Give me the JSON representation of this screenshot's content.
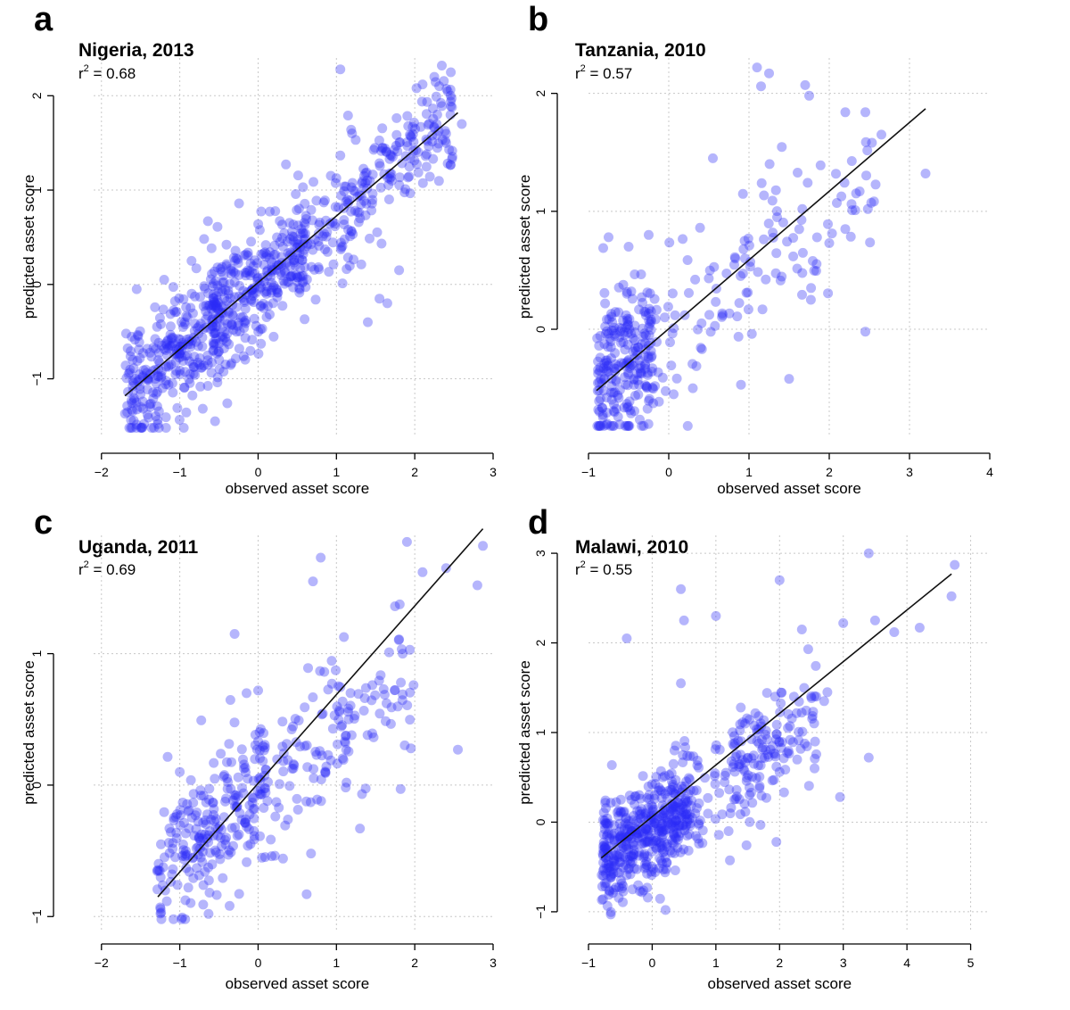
{
  "figure": {
    "xlabel": "observed asset score",
    "ylabel": "predicted asset score"
  },
  "colors": {
    "points": "#2b2bf5",
    "fit_line": "#111111",
    "grid": "#c8c8c8"
  },
  "chart_data": [
    {
      "id": "a",
      "type": "scatter",
      "letter": "a",
      "title": "Nigeria, 2013",
      "r2_value": "0.68",
      "xlabel": "observed asset score",
      "ylabel": "predicted asset score",
      "xlim": [
        -2.1,
        3.0
      ],
      "ylim": [
        -1.6,
        2.4
      ],
      "x_ticks": [
        -2,
        -1,
        0,
        1,
        2,
        3
      ],
      "y_ticks": [
        -1,
        0,
        1,
        2
      ],
      "grid": true,
      "fit": [
        [
          -1.7,
          -1.18
        ],
        [
          2.55,
          1.82
        ]
      ],
      "point_cloud": {
        "n": 820,
        "seed": 11,
        "slope": 0.71,
        "intercept": 0.02,
        "noise": 0.32,
        "x_groups": [
          [
            -1.7,
            -0.5,
            0.35
          ],
          [
            -0.6,
            0.6,
            0.35
          ],
          [
            0.5,
            2.5,
            0.3
          ]
        ]
      },
      "points": [
        [
          -1.6,
          -0.8
        ],
        [
          -1.55,
          -0.05
        ],
        [
          -1.3,
          -1.05
        ],
        [
          -1.2,
          0.05
        ],
        [
          -0.85,
          0.25
        ],
        [
          -0.55,
          -1.45
        ],
        [
          1.05,
          2.28
        ],
        [
          2.1,
          2.12
        ],
        [
          2.25,
          2.2
        ],
        [
          2.4,
          1.5
        ],
        [
          2.6,
          1.7
        ],
        [
          1.8,
          0.15
        ],
        [
          1.65,
          -0.2
        ],
        [
          1.4,
          -0.4
        ],
        [
          1.55,
          -0.15
        ]
      ]
    },
    {
      "id": "b",
      "type": "scatter",
      "letter": "b",
      "title": "Tanzania, 2010",
      "r2_value": "0.57",
      "xlabel": "observed asset score",
      "ylabel": "predicted asset score",
      "xlim": [
        -1.0,
        4.0
      ],
      "ylim": [
        -0.9,
        2.3
      ],
      "x_ticks": [
        -1,
        0,
        1,
        2,
        3,
        4
      ],
      "y_ticks": [
        0,
        1,
        2
      ],
      "grid": true,
      "fit": [
        [
          -0.9,
          -0.52
        ],
        [
          3.2,
          1.87
        ]
      ],
      "point_cloud": {
        "n": 360,
        "seed": 23,
        "slope": 0.5,
        "intercept": -0.05,
        "noise": 0.35,
        "x_groups": [
          [
            -0.9,
            -0.2,
            0.62
          ],
          [
            -0.2,
            1.0,
            0.2
          ],
          [
            1.0,
            2.6,
            0.18
          ]
        ]
      },
      "points": [
        [
          -0.85,
          -0.82
        ],
        [
          -0.75,
          0.78
        ],
        [
          -0.5,
          0.7
        ],
        [
          -0.25,
          0.8
        ],
        [
          0.55,
          1.45
        ],
        [
          1.1,
          2.22
        ],
        [
          1.15,
          2.06
        ],
        [
          1.25,
          2.17
        ],
        [
          1.7,
          2.07
        ],
        [
          1.75,
          1.98
        ],
        [
          2.2,
          1.84
        ],
        [
          2.45,
          1.84
        ],
        [
          2.65,
          1.65
        ],
        [
          3.2,
          1.32
        ],
        [
          2.45,
          -0.02
        ],
        [
          1.5,
          -0.42
        ],
        [
          0.9,
          -0.47
        ],
        [
          0.3,
          -0.5
        ],
        [
          2.2,
          0.85
        ],
        [
          2.0,
          0.73
        ],
        [
          0.95,
          0.6
        ],
        [
          1.35,
          0.95
        ]
      ]
    },
    {
      "id": "c",
      "type": "scatter",
      "letter": "c",
      "title": "Uganda, 2011",
      "r2_value": "0.69",
      "xlabel": "observed asset score",
      "ylabel": "predicted asset score",
      "xlim": [
        -2.1,
        3.0
      ],
      "ylim": [
        -1.1,
        1.9
      ],
      "x_ticks": [
        -2,
        -1,
        0,
        1,
        2,
        3
      ],
      "y_ticks": [
        -1,
        0,
        1
      ],
      "grid": true,
      "fit": [
        [
          -1.28,
          -0.85
        ],
        [
          2.87,
          1.95
        ]
      ],
      "point_cloud": {
        "n": 380,
        "seed": 37,
        "slope": 0.45,
        "intercept": -0.05,
        "noise": 0.28,
        "x_groups": [
          [
            -1.3,
            0.1,
            0.6
          ],
          [
            0.0,
            1.2,
            0.22
          ],
          [
            1.0,
            2.0,
            0.18
          ]
        ]
      },
      "points": [
        [
          -1.25,
          -0.93
        ],
        [
          -1.0,
          0.1
        ],
        [
          -0.3,
          1.15
        ],
        [
          0.0,
          0.72
        ],
        [
          0.62,
          -0.83
        ],
        [
          0.7,
          1.55
        ],
        [
          0.8,
          1.73
        ],
        [
          1.9,
          1.85
        ],
        [
          2.1,
          1.62
        ],
        [
          2.4,
          1.65
        ],
        [
          2.8,
          1.52
        ],
        [
          2.87,
          1.82
        ],
        [
          1.95,
          0.28
        ],
        [
          2.55,
          0.27
        ],
        [
          1.82,
          -0.03
        ],
        [
          1.3,
          -0.33
        ]
      ]
    },
    {
      "id": "d",
      "type": "scatter",
      "letter": "d",
      "title": "Malawi, 2010",
      "r2_value": "0.55",
      "xlabel": "observed asset score",
      "ylabel": "predicted asset score",
      "xlim": [
        -1.0,
        5.3
      ],
      "ylim": [
        -1.2,
        3.2
      ],
      "x_ticks": [
        -1,
        0,
        1,
        2,
        3,
        4,
        5
      ],
      "y_ticks": [
        -1,
        0,
        1,
        2,
        3
      ],
      "grid": true,
      "fit": [
        [
          -0.8,
          -0.4
        ],
        [
          4.7,
          2.77
        ]
      ],
      "point_cloud": {
        "n": 640,
        "seed": 53,
        "slope": 0.45,
        "intercept": -0.05,
        "noise": 0.3,
        "x_groups": [
          [
            -0.8,
            0.6,
            0.7
          ],
          [
            0.3,
            2.6,
            0.2
          ],
          [
            1.2,
            2.2,
            0.1
          ]
        ]
      },
      "points": [
        [
          -0.65,
          -1.03
        ],
        [
          -0.4,
          2.05
        ],
        [
          0.45,
          2.6
        ],
        [
          0.5,
          2.25
        ],
        [
          0.45,
          1.55
        ],
        [
          1.0,
          2.3
        ],
        [
          2.0,
          2.7
        ],
        [
          3.4,
          3.0
        ],
        [
          3.5,
          2.25
        ],
        [
          3.0,
          2.22
        ],
        [
          3.8,
          2.12
        ],
        [
          4.2,
          2.17
        ],
        [
          4.75,
          2.87
        ],
        [
          4.7,
          2.52
        ],
        [
          2.35,
          2.15
        ],
        [
          2.45,
          1.93
        ],
        [
          2.75,
          1.45
        ],
        [
          2.7,
          1.35
        ],
        [
          3.4,
          0.72
        ],
        [
          2.95,
          0.28
        ],
        [
          1.95,
          -0.22
        ],
        [
          1.7,
          -0.03
        ],
        [
          1.2,
          -0.1
        ]
      ]
    }
  ]
}
